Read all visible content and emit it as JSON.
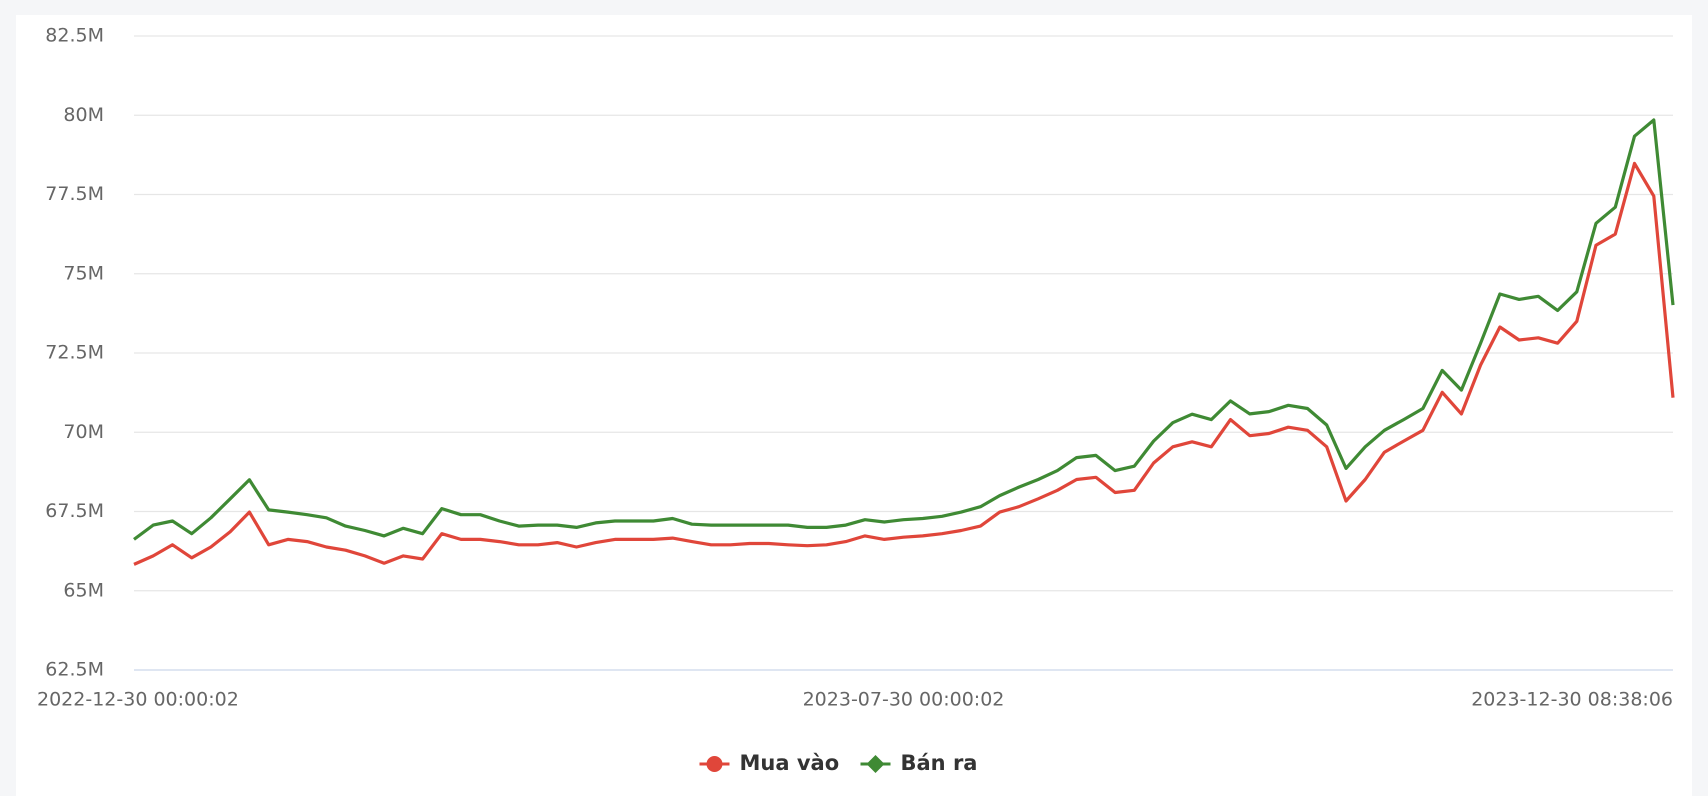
{
  "chart_data": {
    "type": "line",
    "categories": [
      "2022-12-30 00:00:02",
      null,
      null,
      null,
      null,
      null,
      null,
      null,
      null,
      null,
      null,
      null,
      null,
      null,
      null,
      null,
      null,
      null,
      null,
      null,
      null,
      null,
      null,
      null,
      null,
      null,
      null,
      null,
      null,
      null,
      null,
      null,
      null,
      null,
      null,
      null,
      null,
      null,
      null,
      null,
      "2023-07-30 00:00:02",
      null,
      null,
      null,
      null,
      null,
      null,
      null,
      null,
      null,
      null,
      null,
      null,
      null,
      null,
      null,
      null,
      null,
      null,
      null,
      null,
      null,
      null,
      null,
      null,
      null,
      null,
      null,
      null,
      null,
      null,
      null,
      null,
      null,
      null,
      null,
      null,
      null,
      null,
      null,
      "2023-12-30 08:38:06"
    ],
    "series": [
      {
        "name": "Mua vào",
        "color": "#e0463a",
        "values": [
          65830000,
          66100000,
          66450000,
          66040000,
          66380000,
          66860000,
          67480000,
          66450000,
          66620000,
          66550000,
          66380000,
          66280000,
          66100000,
          65870000,
          66100000,
          66000000,
          66800000,
          66620000,
          66620000,
          66550000,
          66450000,
          66450000,
          66520000,
          66380000,
          66520000,
          66620000,
          66620000,
          66620000,
          66660000,
          66550000,
          66450000,
          66450000,
          66490000,
          66490000,
          66450000,
          66420000,
          66450000,
          66550000,
          66730000,
          66620000,
          66690000,
          66730000,
          66800000,
          66900000,
          67040000,
          67480000,
          67650000,
          67900000,
          68170000,
          68510000,
          68580000,
          68100000,
          68170000,
          69030000,
          69540000,
          69700000,
          69540000,
          70400000,
          69890000,
          69960000,
          70160000,
          70060000,
          69540000,
          67830000,
          68510000,
          69370000,
          69720000,
          70060000,
          71260000,
          70580000,
          72120000,
          73320000,
          72910000,
          72980000,
          72810000,
          73500000,
          75900000,
          76250000,
          78480000,
          77450000,
          71090000
        ]
      },
      {
        "name": "Bán ra",
        "color": "#3f8a34",
        "values": [
          66620000,
          67070000,
          67200000,
          66800000,
          67300000,
          67900000,
          68500000,
          67550000,
          67480000,
          67400000,
          67300000,
          67040000,
          66900000,
          66730000,
          66970000,
          66800000,
          67590000,
          67400000,
          67400000,
          67200000,
          67040000,
          67070000,
          67070000,
          67000000,
          67140000,
          67200000,
          67200000,
          67200000,
          67280000,
          67100000,
          67070000,
          67070000,
          67070000,
          67070000,
          67070000,
          67000000,
          67000000,
          67070000,
          67240000,
          67170000,
          67240000,
          67280000,
          67350000,
          67480000,
          67650000,
          68000000,
          68270000,
          68510000,
          68790000,
          69200000,
          69270000,
          68790000,
          68930000,
          69720000,
          70300000,
          70570000,
          70400000,
          70990000,
          70580000,
          70650000,
          70850000,
          70750000,
          70230000,
          68860000,
          69540000,
          70060000,
          70400000,
          70750000,
          71950000,
          71330000,
          72810000,
          74360000,
          74190000,
          74290000,
          73840000,
          74430000,
          76590000,
          77100000,
          79340000,
          79850000,
          74010000
        ]
      }
    ],
    "ylim": [
      62500000,
      82500000
    ],
    "yticks": [
      {
        "value": 62500000,
        "label": "62.5M"
      },
      {
        "value": 65000000,
        "label": "65M"
      },
      {
        "value": 67500000,
        "label": "67.5M"
      },
      {
        "value": 70000000,
        "label": "70M"
      },
      {
        "value": 72500000,
        "label": "72.5M"
      },
      {
        "value": 75000000,
        "label": "75M"
      },
      {
        "value": 77500000,
        "label": "77.5M"
      },
      {
        "value": 80000000,
        "label": "80M"
      },
      {
        "value": 82500000,
        "label": "82.5M"
      }
    ],
    "grid": true,
    "legend": "bottom"
  }
}
